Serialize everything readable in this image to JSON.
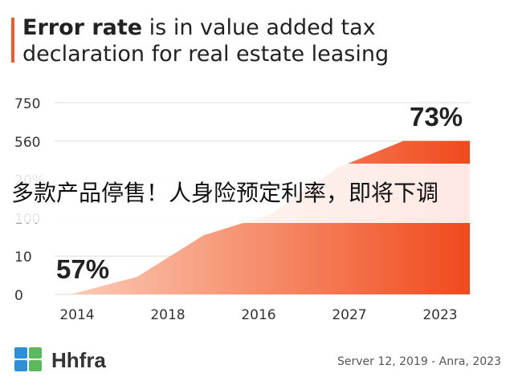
{
  "header": {
    "title_bold": "Error rate",
    "title_rest": " is in value added tax declaration for real estate leasing"
  },
  "banner": {
    "text": "多款产品停售！人身险预定利率，即将下调"
  },
  "footer": {
    "brand": "Hhfra",
    "source": "Server 12, 2019 - Anra, 2023",
    "logo_colors": [
      "#2f8fd6",
      "#5cb85c",
      "#2f8fd6",
      "#5cb85c"
    ]
  },
  "chart_data": {
    "type": "area",
    "title": "Error rate is in value added tax declaration for real estate leasing",
    "y_tick_labels": [
      "750",
      "560",
      "20%",
      "100",
      "10",
      "0"
    ],
    "x_tick_labels": [
      "2014",
      "2018",
      "2016",
      "2027",
      "2023"
    ],
    "values": [
      0,
      55,
      185,
      250,
      395,
      480,
      480
    ],
    "ylim": [
      0,
      600
    ],
    "grid": true,
    "annotations": [
      {
        "text": "57%",
        "at": "start"
      },
      {
        "text": "73%",
        "at": "end"
      }
    ],
    "colors": {
      "fill_start": "#fbcbb5",
      "fill_end": "#f04a1c",
      "grid": "#dddddd",
      "tick": "#333333"
    }
  }
}
